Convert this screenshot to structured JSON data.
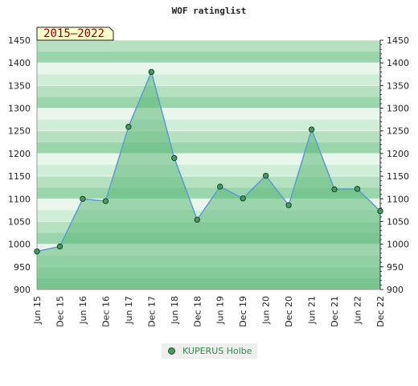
{
  "chart_data": {
    "type": "area",
    "title": "WOF ratinglist",
    "badge": "2015–2022",
    "categories": [
      "Jun 15",
      "Dec 15",
      "Jun 16",
      "Dec 16",
      "Jun 17",
      "Dec 17",
      "Jun 18",
      "Dec 18",
      "Jun 19",
      "Dec 19",
      "Jun 20",
      "Dec 20",
      "Jun 21",
      "Dec 21",
      "Jun 22",
      "Dec 22"
    ],
    "series": [
      {
        "name": "KUPERUS Holbe",
        "values": [
          984,
          995,
          1100,
          1095,
          1259,
          1380,
          1190,
          1054,
          1127,
          1101,
          1151,
          1086,
          1253,
          1121,
          1122,
          1073
        ]
      }
    ],
    "ylim": [
      900,
      1450
    ],
    "yticks": [
      900,
      950,
      1000,
      1050,
      1100,
      1150,
      1200,
      1250,
      1300,
      1350,
      1400,
      1450
    ],
    "legend_position": "bottom",
    "grid": true,
    "colors": {
      "line": "#5b9bd5",
      "fill": "#5cb878",
      "marker": "#3f9e5e",
      "band_dark": "#8fd1a3",
      "band_light": "#e3f3e7"
    }
  }
}
